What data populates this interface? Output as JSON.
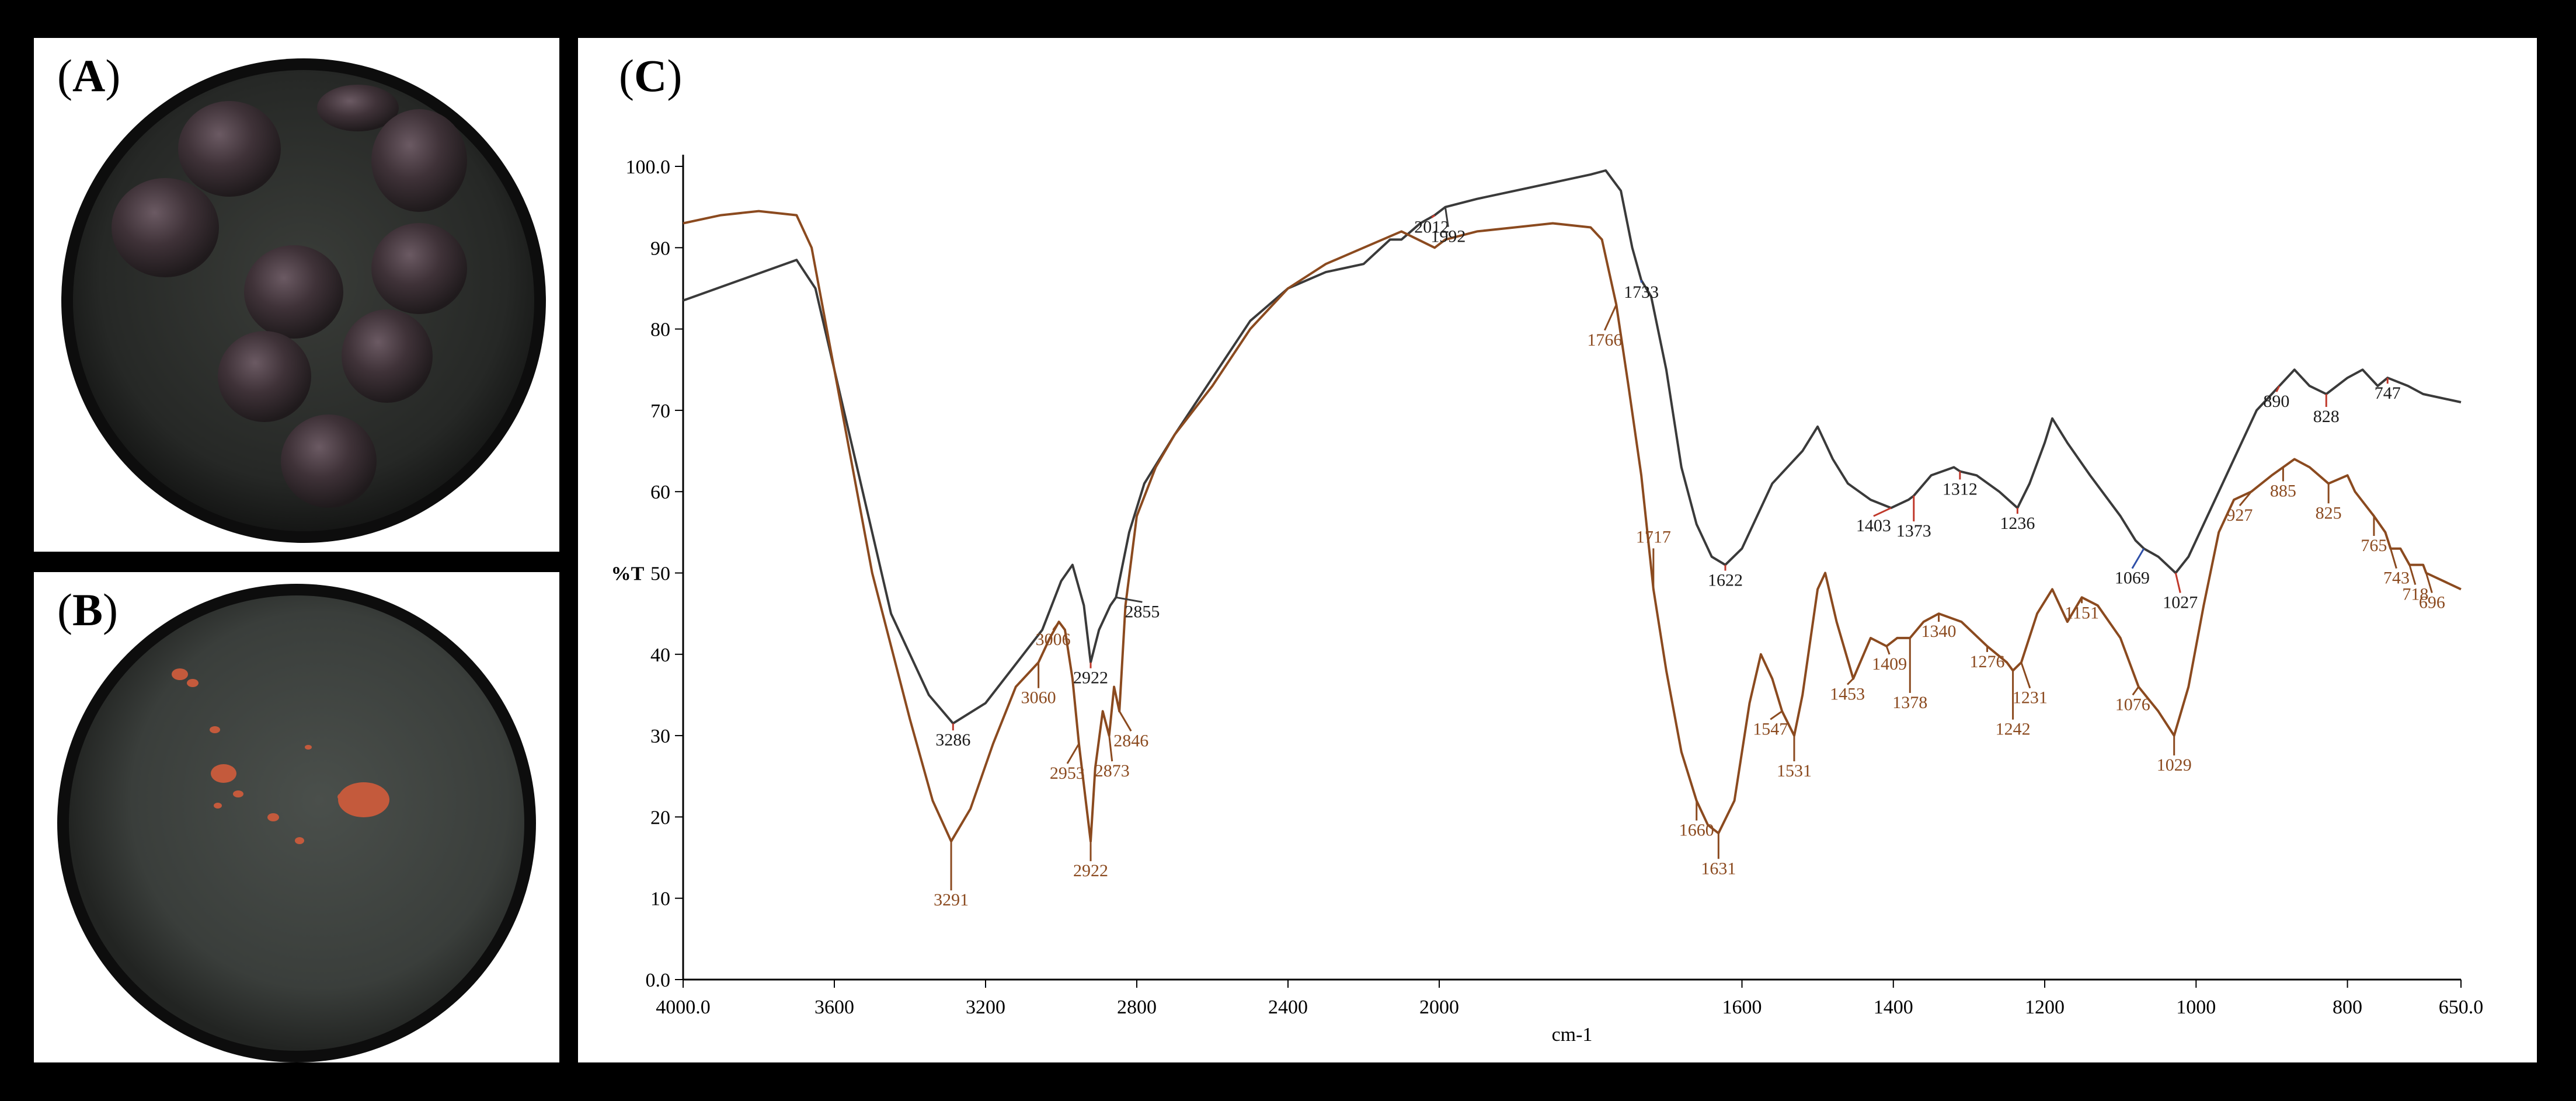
{
  "panels": {
    "a": {
      "open": "(",
      "letter": "A",
      "close": ")"
    },
    "b": {
      "open": "(",
      "letter": "B",
      "close": ")"
    },
    "c": {
      "open": "(",
      "letter": "C",
      "close": ")"
    }
  },
  "colors": {
    "frame": "#000000",
    "series_black": "#3a3a3a",
    "series_brown": "#8b4a1f",
    "marker_red": "#c0392b",
    "marker_blue": "#2e4fa8",
    "photo_dark": "#2b2e2b",
    "seed": "#3d2f2f",
    "powder": "#c45a3c"
  },
  "chart_data": {
    "type": "line",
    "xlabel": "cm-1",
    "ylabel": "%T",
    "xlim": [
      4000,
      650
    ],
    "ylim": [
      0,
      100
    ],
    "x_reversed": true,
    "xticks": [
      4000,
      3600,
      3200,
      2800,
      2400,
      2000,
      1600,
      1400,
      1200,
      1000,
      800,
      650
    ],
    "xtick_labels": [
      "4000.0",
      "3600",
      "3200",
      "2800",
      "2400",
      "2000",
      "1600",
      "1400",
      "1200",
      "1000",
      "800",
      "650.0"
    ],
    "yticks": [
      0,
      10,
      20,
      30,
      40,
      50,
      60,
      70,
      80,
      90,
      100
    ],
    "ytick_labels": [
      "0.0",
      "10",
      "20",
      "30",
      "40",
      "50",
      "60",
      "70",
      "80",
      "90",
      "100.0"
    ],
    "series": [
      {
        "color_key": "series_black",
        "points": [
          [
            4000,
            83.5
          ],
          [
            3850,
            86
          ],
          [
            3700,
            88.5
          ],
          [
            3650,
            85
          ],
          [
            3550,
            65
          ],
          [
            3450,
            45
          ],
          [
            3350,
            35
          ],
          [
            3286,
            31.5
          ],
          [
            3200,
            34
          ],
          [
            3100,
            40
          ],
          [
            3050,
            43
          ],
          [
            3000,
            49
          ],
          [
            2970,
            51
          ],
          [
            2940,
            46
          ],
          [
            2922,
            39
          ],
          [
            2900,
            43
          ],
          [
            2870,
            46
          ],
          [
            2855,
            47
          ],
          [
            2820,
            55
          ],
          [
            2780,
            61
          ],
          [
            2700,
            67
          ],
          [
            2600,
            74
          ],
          [
            2500,
            81
          ],
          [
            2400,
            85
          ],
          [
            2300,
            87
          ],
          [
            2200,
            88
          ],
          [
            2130,
            91
          ],
          [
            2100,
            91
          ],
          [
            2050,
            93
          ],
          [
            2012,
            94
          ],
          [
            1992,
            95
          ],
          [
            1950,
            96
          ],
          [
            1900,
            97
          ],
          [
            1850,
            98
          ],
          [
            1800,
            99
          ],
          [
            1780,
            99.5
          ],
          [
            1760,
            97
          ],
          [
            1745,
            90
          ],
          [
            1733,
            86
          ],
          [
            1720,
            84
          ],
          [
            1700,
            75
          ],
          [
            1680,
            63
          ],
          [
            1660,
            56
          ],
          [
            1640,
            52
          ],
          [
            1622,
            51
          ],
          [
            1600,
            53
          ],
          [
            1560,
            61
          ],
          [
            1520,
            65
          ],
          [
            1500,
            68
          ],
          [
            1480,
            64
          ],
          [
            1460,
            61
          ],
          [
            1430,
            59
          ],
          [
            1403,
            58
          ],
          [
            1380,
            59
          ],
          [
            1373,
            59.5
          ],
          [
            1350,
            62
          ],
          [
            1320,
            63
          ],
          [
            1312,
            62.5
          ],
          [
            1290,
            62
          ],
          [
            1260,
            60
          ],
          [
            1236,
            58
          ],
          [
            1220,
            61
          ],
          [
            1200,
            66
          ],
          [
            1190,
            69
          ],
          [
            1170,
            66
          ],
          [
            1140,
            62
          ],
          [
            1100,
            57
          ],
          [
            1080,
            54
          ],
          [
            1069,
            53
          ],
          [
            1050,
            52
          ],
          [
            1027,
            50
          ],
          [
            1010,
            52
          ],
          [
            980,
            58
          ],
          [
            950,
            64
          ],
          [
            920,
            70
          ],
          [
            890,
            73
          ],
          [
            870,
            75
          ],
          [
            850,
            73
          ],
          [
            828,
            72
          ],
          [
            800,
            74
          ],
          [
            780,
            75
          ],
          [
            760,
            73
          ],
          [
            747,
            74
          ],
          [
            720,
            73
          ],
          [
            700,
            72
          ],
          [
            650,
            71
          ]
        ]
      },
      {
        "color_key": "series_brown",
        "points": [
          [
            4000,
            93
          ],
          [
            3900,
            94
          ],
          [
            3800,
            94.5
          ],
          [
            3700,
            94
          ],
          [
            3660,
            90
          ],
          [
            3600,
            75
          ],
          [
            3500,
            50
          ],
          [
            3400,
            32
          ],
          [
            3340,
            22
          ],
          [
            3291,
            17
          ],
          [
            3240,
            21
          ],
          [
            3180,
            29
          ],
          [
            3120,
            36
          ],
          [
            3060,
            39
          ],
          [
            3030,
            42
          ],
          [
            3006,
            44
          ],
          [
            2990,
            43
          ],
          [
            2970,
            37
          ],
          [
            2953,
            29
          ],
          [
            2935,
            22
          ],
          [
            2922,
            17
          ],
          [
            2910,
            26
          ],
          [
            2890,
            33
          ],
          [
            2873,
            30
          ],
          [
            2860,
            36
          ],
          [
            2846,
            33
          ],
          [
            2830,
            46
          ],
          [
            2800,
            57
          ],
          [
            2750,
            63
          ],
          [
            2700,
            67
          ],
          [
            2600,
            73
          ],
          [
            2500,
            80
          ],
          [
            2400,
            85
          ],
          [
            2300,
            88
          ],
          [
            2200,
            90
          ],
          [
            2100,
            92
          ],
          [
            2012,
            90
          ],
          [
            1992,
            91
          ],
          [
            1950,
            92
          ],
          [
            1900,
            92.5
          ],
          [
            1850,
            93
          ],
          [
            1800,
            92.5
          ],
          [
            1785,
            91
          ],
          [
            1766,
            83
          ],
          [
            1750,
            73
          ],
          [
            1733,
            62
          ],
          [
            1717,
            48
          ],
          [
            1700,
            38
          ],
          [
            1680,
            28
          ],
          [
            1660,
            22
          ],
          [
            1645,
            19
          ],
          [
            1631,
            18
          ],
          [
            1610,
            22
          ],
          [
            1590,
            34
          ],
          [
            1575,
            40
          ],
          [
            1560,
            37
          ],
          [
            1547,
            33
          ],
          [
            1531,
            30
          ],
          [
            1520,
            35
          ],
          [
            1500,
            48
          ],
          [
            1490,
            50
          ],
          [
            1475,
            44
          ],
          [
            1453,
            37
          ],
          [
            1430,
            42
          ],
          [
            1409,
            41
          ],
          [
            1395,
            42
          ],
          [
            1378,
            42
          ],
          [
            1360,
            44
          ],
          [
            1340,
            45
          ],
          [
            1310,
            44
          ],
          [
            1276,
            41
          ],
          [
            1250,
            39
          ],
          [
            1242,
            38
          ],
          [
            1231,
            39
          ],
          [
            1210,
            45
          ],
          [
            1190,
            48
          ],
          [
            1170,
            44
          ],
          [
            1151,
            47
          ],
          [
            1130,
            46
          ],
          [
            1100,
            42
          ],
          [
            1076,
            36
          ],
          [
            1050,
            33
          ],
          [
            1029,
            30
          ],
          [
            1010,
            36
          ],
          [
            990,
            46
          ],
          [
            970,
            55
          ],
          [
            950,
            59
          ],
          [
            927,
            60
          ],
          [
            900,
            62
          ],
          [
            885,
            63
          ],
          [
            870,
            64
          ],
          [
            850,
            63
          ],
          [
            825,
            61
          ],
          [
            800,
            62
          ],
          [
            790,
            60
          ],
          [
            765,
            57
          ],
          [
            750,
            55
          ],
          [
            743,
            53
          ],
          [
            730,
            53
          ],
          [
            718,
            51
          ],
          [
            700,
            51
          ],
          [
            696,
            50
          ],
          [
            650,
            48
          ]
        ]
      }
    ],
    "annotations": [
      {
        "x": 3286,
        "label": "3286",
        "series": 0,
        "line": "marker_red",
        "dy": 38,
        "dx": 0
      },
      {
        "x": 2922,
        "label": "2922",
        "series": 0,
        "line": "marker_red",
        "dy": 36,
        "dx": 0
      },
      {
        "x": 2855,
        "label": "2855",
        "series": 0,
        "line": "series_black",
        "dy": 34,
        "dx": 45
      },
      {
        "x": 2012,
        "label": "2012",
        "series": 0,
        "line": "marker_red",
        "dy": 30,
        "dx": -5
      },
      {
        "x": 1992,
        "label": "1992",
        "series": 0,
        "line": "series_black",
        "dy": 60,
        "dx": 5
      },
      {
        "x": 1733,
        "label": "1733",
        "series": 0,
        "line": "marker_blue",
        "dy": 30,
        "dx": 0
      },
      {
        "x": 1622,
        "label": "1622",
        "series": 0,
        "line": "marker_red",
        "dy": 36,
        "dx": 0
      },
      {
        "x": 1403,
        "label": "1403",
        "series": 0,
        "line": "marker_red",
        "dy": 40,
        "dx": -30
      },
      {
        "x": 1373,
        "label": "1373",
        "series": 0,
        "line": "marker_red",
        "dy": 70,
        "dx": 0
      },
      {
        "x": 1312,
        "label": "1312",
        "series": 0,
        "line": "marker_red",
        "dy": 40,
        "dx": 0
      },
      {
        "x": 1236,
        "label": "1236",
        "series": 0,
        "line": "marker_red",
        "dy": 36,
        "dx": 0
      },
      {
        "x": 1069,
        "label": "1069",
        "series": 0,
        "line": "marker_blue",
        "dy": 60,
        "dx": -20
      },
      {
        "x": 1027,
        "label": "1027",
        "series": 0,
        "line": "marker_red",
        "dy": 60,
        "dx": 8
      },
      {
        "x": 890,
        "label": "890",
        "series": 0,
        "line": "marker_red",
        "dy": 36,
        "dx": -5
      },
      {
        "x": 828,
        "label": "828",
        "series": 0,
        "line": "marker_red",
        "dy": 48,
        "dx": 0
      },
      {
        "x": 747,
        "label": "747",
        "series": 0,
        "line": "marker_red",
        "dy": 36,
        "dx": 0
      },
      {
        "x": 3291,
        "label": "3291",
        "series": 1,
        "line": "series_brown",
        "dy": 110,
        "dx": 0
      },
      {
        "x": 3060,
        "label": "3060",
        "series": 1,
        "line": "series_brown",
        "dy": 70,
        "dx": 0
      },
      {
        "x": 3006,
        "label": "3006",
        "series": 1,
        "line": "series_brown",
        "dy": 40,
        "dx": -10
      },
      {
        "x": 2953,
        "label": "2953",
        "series": 1,
        "line": "series_brown",
        "dy": 60,
        "dx": -20
      },
      {
        "x": 2922,
        "label": "2922",
        "series": 1,
        "line": "series_brown",
        "dy": 60,
        "dx": 0
      },
      {
        "x": 2873,
        "label": "2873",
        "series": 1,
        "line": "series_brown",
        "dy": 70,
        "dx": 5
      },
      {
        "x": 2846,
        "label": "2846",
        "series": 1,
        "line": "series_brown",
        "dy": 60,
        "dx": 20
      },
      {
        "x": 1766,
        "label": "1766",
        "series": 1,
        "line": "series_brown",
        "dy": 70,
        "dx": -20
      },
      {
        "x": 1717,
        "label": "1717",
        "series": 1,
        "line": "series_brown",
        "dy": -80,
        "dx": 0
      },
      {
        "x": 1660,
        "label": "1660",
        "series": 1,
        "line": "series_brown",
        "dy": 60,
        "dx": 0
      },
      {
        "x": 1631,
        "label": "1631",
        "series": 1,
        "line": "series_brown",
        "dy": 70,
        "dx": 0
      },
      {
        "x": 1547,
        "label": "1547",
        "series": 1,
        "line": "series_brown",
        "dy": 40,
        "dx": -20
      },
      {
        "x": 1531,
        "label": "1531",
        "series": 1,
        "line": "series_brown",
        "dy": 70,
        "dx": 0
      },
      {
        "x": 1453,
        "label": "1453",
        "series": 1,
        "line": "series_brown",
        "dy": 36,
        "dx": -10
      },
      {
        "x": 1409,
        "label": "1409",
        "series": 1,
        "line": "series_brown",
        "dy": 40,
        "dx": 5
      },
      {
        "x": 1378,
        "label": "1378",
        "series": 1,
        "line": "series_brown",
        "dy": 120,
        "dx": 0
      },
      {
        "x": 1340,
        "label": "1340",
        "series": 1,
        "line": "series_brown",
        "dy": 40,
        "dx": 0
      },
      {
        "x": 1276,
        "label": "1276",
        "series": 1,
        "line": "series_brown",
        "dy": 36,
        "dx": 0
      },
      {
        "x": 1242,
        "label": "1242",
        "series": 1,
        "line": "series_brown",
        "dy": 110,
        "dx": 0
      },
      {
        "x": 1231,
        "label": "1231",
        "series": 1,
        "line": "series_brown",
        "dy": 70,
        "dx": 15
      },
      {
        "x": 1151,
        "label": "1151",
        "series": 1,
        "line": "series_brown",
        "dy": 36,
        "dx": 0
      },
      {
        "x": 1076,
        "label": "1076",
        "series": 1,
        "line": "series_brown",
        "dy": 40,
        "dx": -10
      },
      {
        "x": 1029,
        "label": "1029",
        "series": 1,
        "line": "series_brown",
        "dy": 60,
        "dx": 0
      },
      {
        "x": 927,
        "label": "927",
        "series": 1,
        "line": "series_brown",
        "dy": 50,
        "dx": -20
      },
      {
        "x": 885,
        "label": "885",
        "series": 1,
        "line": "series_brown",
        "dy": 50,
        "dx": 0
      },
      {
        "x": 825,
        "label": "825",
        "series": 1,
        "line": "series_brown",
        "dy": 60,
        "dx": 0
      },
      {
        "x": 765,
        "label": "765",
        "series": 1,
        "line": "series_brown",
        "dy": 60,
        "dx": 0
      },
      {
        "x": 743,
        "label": "743",
        "series": 1,
        "line": "series_brown",
        "dy": 60,
        "dx": 10
      },
      {
        "x": 718,
        "label": "718",
        "series": 1,
        "line": "series_brown",
        "dy": 60,
        "dx": 10
      },
      {
        "x": 696,
        "label": "696",
        "series": 1,
        "line": "series_brown",
        "dy": 60,
        "dx": 10
      }
    ],
    "grid": false,
    "legend": "none"
  }
}
